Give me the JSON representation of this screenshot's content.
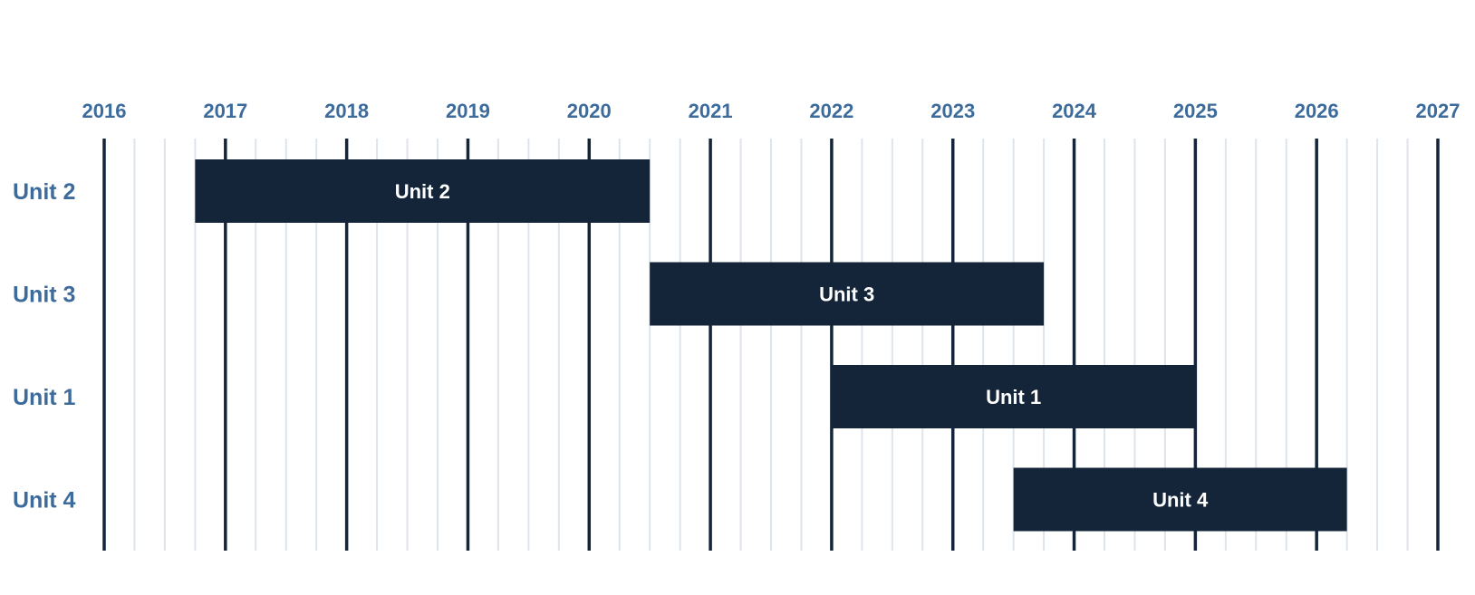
{
  "chart_data": {
    "type": "gantt",
    "x_ticks": [
      "2016",
      "2017",
      "2018",
      "2019",
      "2020",
      "2021",
      "2022",
      "2023",
      "2024",
      "2025",
      "2026",
      "2027"
    ],
    "xlim": [
      2016,
      2027
    ],
    "minor_ticks_per_year": 4,
    "grid": true,
    "rows": [
      {
        "label": "Unit 2",
        "bar_label": "Unit 2",
        "start": 2016.75,
        "end": 2020.5
      },
      {
        "label": "Unit 3",
        "bar_label": "Unit 3",
        "start": 2020.5,
        "end": 2023.75
      },
      {
        "label": "Unit 1",
        "bar_label": "Unit 1",
        "start": 2022.0,
        "end": 2025.0
      },
      {
        "label": "Unit 4",
        "bar_label": "Unit 4",
        "start": 2023.5,
        "end": 2026.25
      }
    ],
    "colors": {
      "bar": "#14253a",
      "bar_text": "#ffffff",
      "label": "#3d6b9c",
      "major_grid": "#14253a",
      "minor_grid": "#dde4ea"
    }
  }
}
